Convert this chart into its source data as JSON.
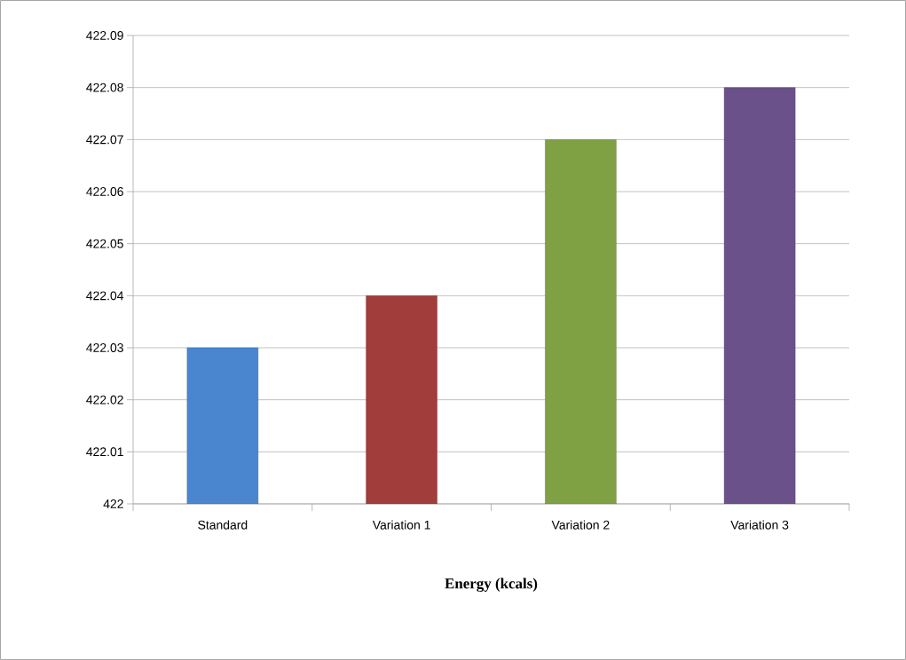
{
  "chart_data": {
    "type": "bar",
    "xlabel": "Energy (kcals)",
    "categories": [
      "Standard",
      "Variation 1",
      "Variation 2",
      "Variation 3"
    ],
    "values": [
      422.03,
      422.04,
      422.07,
      422.08
    ],
    "colors": [
      "#4a86d0",
      "#a13d3b",
      "#80a044",
      "#6a5189"
    ],
    "ylim": [
      422,
      422.09
    ],
    "yticks": [
      422,
      422.01,
      422.02,
      422.03,
      422.04,
      422.05,
      422.06,
      422.07,
      422.08,
      422.09
    ],
    "grid": "y"
  }
}
